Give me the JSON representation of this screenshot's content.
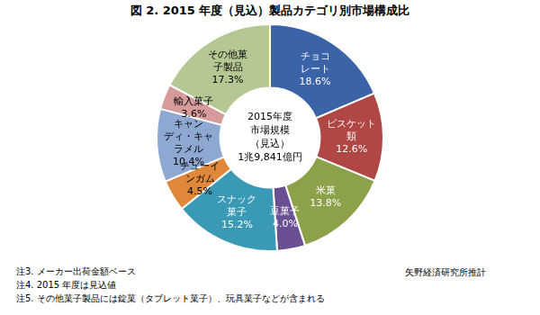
{
  "chart_data": {
    "type": "doughnut",
    "title": "図 2.  2015 年度（見込）製品カテゴリ別市場構成比",
    "categories": [
      "チョコ\nレート",
      "ビスケット\n類",
      "米菓",
      "豆菓子",
      "スナック\n菓子",
      "チューイ\nンガム",
      "キャン\nディ・キャ\nラメル",
      "輸入菓子",
      "その他菓\n子製品"
    ],
    "values": [
      18.6,
      12.6,
      13.8,
      4.0,
      15.2,
      4.5,
      10.4,
      3.6,
      17.3
    ],
    "value_labels": [
      "18.6%",
      "12.6%",
      "13.8%",
      "4.0%",
      "15.2%",
      "4.5%",
      "10.4%",
      "3.6%",
      "17.3%"
    ],
    "colors": [
      "#3b63a8",
      "#b04744",
      "#8ba14a",
      "#6a4f93",
      "#3a9ab5",
      "#e0873a",
      "#8fa8d2",
      "#d69b9a",
      "#b5c894"
    ],
    "data_labels": true,
    "center_text": [
      "2015年度",
      "市場規模",
      "（見込）",
      "1兆9,841億円"
    ],
    "notes": [
      "注3. メーカー出荷金額ベース",
      "注4. 2015 年度は見込値",
      "注5. その他菓子製品には錠菓（タブレット菓子）、玩具菓子などが含まれる"
    ],
    "source": "矢野経済研究所推計"
  }
}
